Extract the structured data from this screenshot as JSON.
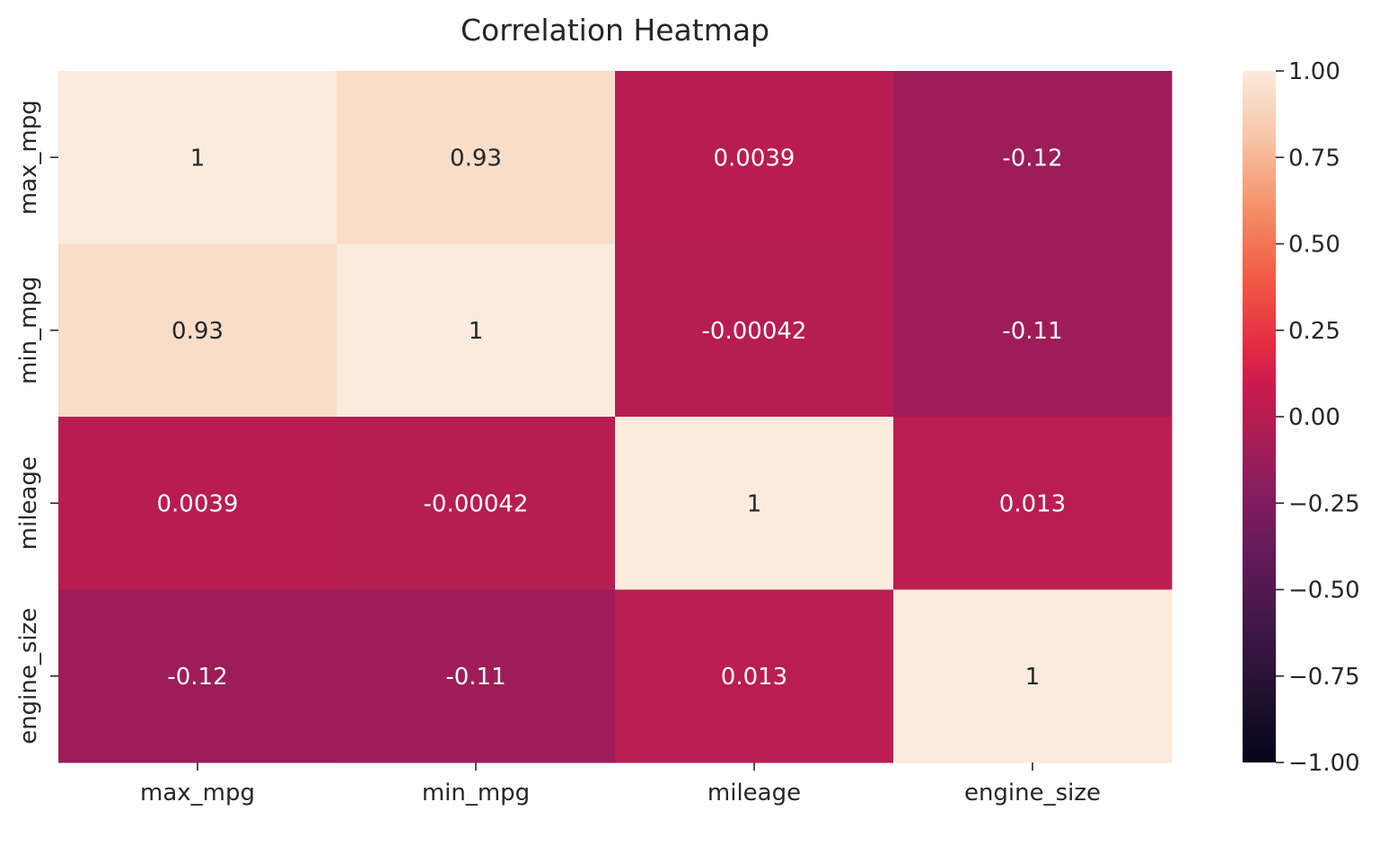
{
  "chart_data": {
    "type": "heatmap",
    "title": "Correlation Heatmap",
    "rows": [
      "max_mpg",
      "min_mpg",
      "mileage",
      "engine_size"
    ],
    "columns": [
      "max_mpg",
      "min_mpg",
      "mileage",
      "engine_size"
    ],
    "values": [
      [
        1,
        0.93,
        0.0039,
        -0.12
      ],
      [
        0.93,
        1,
        -0.00042,
        -0.11
      ],
      [
        0.0039,
        -0.00042,
        1,
        0.013
      ],
      [
        -0.12,
        -0.11,
        0.013,
        1
      ]
    ],
    "cell_labels": [
      [
        "1",
        "0.93",
        "0.0039",
        "-0.12"
      ],
      [
        "0.93",
        "1",
        "-0.00042",
        "-0.11"
      ],
      [
        "0.0039",
        "-0.00042",
        "1",
        "0.013"
      ],
      [
        "-0.12",
        "-0.11",
        "0.013",
        "1"
      ]
    ],
    "colorbar": {
      "min": -1.0,
      "max": 1.0,
      "ticks": [
        1.0,
        0.75,
        0.5,
        0.25,
        0.0,
        -0.25,
        -0.5,
        -0.75,
        -1.0
      ],
      "tick_labels": [
        "1.00",
        "0.75",
        "0.50",
        "0.25",
        "0.00",
        "−0.25",
        "−0.50",
        "−0.75",
        "−1.00"
      ],
      "colormap": "rocket",
      "placement": "right"
    },
    "grid": false,
    "colors": {
      "low": "#03051a",
      "mid": "#cb1b4f",
      "high": "#faebdd"
    }
  }
}
